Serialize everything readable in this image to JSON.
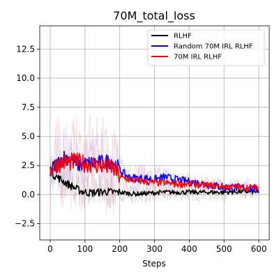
{
  "chart_data": {
    "type": "line",
    "title": "70M_total_loss",
    "xlabel": "Steps",
    "ylabel": "",
    "xlim": [
      -30,
      630
    ],
    "ylim": [
      -3.9,
      14.5
    ],
    "xticks": [
      0,
      100,
      200,
      300,
      400,
      500,
      600
    ],
    "yticks": [
      -2.5,
      0.0,
      2.5,
      5.0,
      7.5,
      10.0,
      12.5
    ],
    "ytick_labels": [
      "−2.5",
      "0.0",
      "2.5",
      "5.0",
      "7.5",
      "10.0",
      "12.5"
    ],
    "grid": true,
    "legend_position": "top-right",
    "series": [
      {
        "name": "RLHF",
        "color": "#000000",
        "x": [
          0,
          10,
          20,
          30,
          40,
          50,
          60,
          70,
          80,
          90,
          100,
          120,
          140,
          160,
          180,
          200,
          225,
          250,
          275,
          300,
          330,
          360,
          400,
          450,
          500,
          550,
          600
        ],
        "y": [
          2.0,
          1.7,
          1.5,
          1.3,
          1.1,
          0.9,
          0.75,
          0.6,
          0.4,
          0.3,
          0.2,
          0.15,
          0.2,
          0.25,
          0.2,
          0.2,
          0.1,
          0.05,
          0.1,
          0.15,
          0.2,
          0.2,
          0.2,
          0.2,
          0.2,
          0.25,
          0.25
        ]
      },
      {
        "name": "Random 70M IRL RLHF",
        "color": "#0000ff",
        "x": [
          0,
          10,
          20,
          30,
          40,
          50,
          60,
          70,
          80,
          90,
          100,
          120,
          140,
          160,
          180,
          200,
          225,
          250,
          275,
          300,
          330,
          360,
          400,
          450,
          500,
          550,
          600
        ],
        "y": [
          2.0,
          2.3,
          2.6,
          2.9,
          3.2,
          3.2,
          3.0,
          2.8,
          2.6,
          2.6,
          2.6,
          2.7,
          2.7,
          2.8,
          2.9,
          2.1,
          1.5,
          1.4,
          1.4,
          1.3,
          1.5,
          1.3,
          1.1,
          0.9,
          0.6,
          0.6,
          0.4
        ]
      },
      {
        "name": "70M IRL RLHF",
        "color": "#ff0000",
        "x": [
          0,
          10,
          20,
          30,
          40,
          50,
          60,
          70,
          80,
          90,
          100,
          120,
          140,
          160,
          180,
          200,
          225,
          250,
          275,
          300,
          330,
          360,
          400,
          450,
          500,
          550,
          600
        ],
        "y": [
          2.0,
          2.4,
          2.6,
          2.7,
          2.8,
          2.8,
          2.8,
          2.8,
          2.8,
          2.7,
          2.7,
          2.6,
          2.5,
          2.4,
          2.3,
          1.5,
          1.3,
          1.2,
          1.1,
          1.0,
          1.0,
          0.9,
          0.9,
          0.8,
          0.7,
          0.6,
          0.6
        ]
      }
    ]
  }
}
